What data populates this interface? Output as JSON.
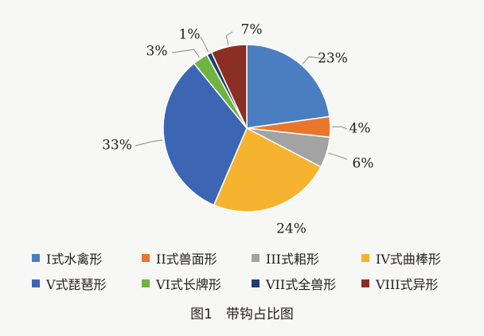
{
  "chart_data": {
    "type": "pie",
    "slices": [
      {
        "label": "I式水禽形",
        "value": 23,
        "pct_label": "23%",
        "color": "#4a7ec0"
      },
      {
        "label": "II式兽面形",
        "value": 4,
        "pct_label": "4%",
        "color": "#e9772b"
      },
      {
        "label": "III式耜形",
        "value": 6,
        "pct_label": "6%",
        "color": "#a3a3a3"
      },
      {
        "label": "IV式曲棒形",
        "value": 24,
        "pct_label": "24%",
        "color": "#f5b330"
      },
      {
        "label": "V式琵琶形",
        "value": 33,
        "pct_label": "33%",
        "color": "#3c66b3"
      },
      {
        "label": "VI式长牌形",
        "value": 3,
        "pct_label": "3%",
        "color": "#6fb440"
      },
      {
        "label": "VII式全兽形",
        "value": 1,
        "pct_label": "1%",
        "color": "#1f3e70"
      },
      {
        "label": "VIII式异形",
        "value": 7,
        "pct_label": "7%",
        "color": "#8b2f24"
      }
    ],
    "legend_position": "bottom"
  },
  "caption": "图1　带钩占比图"
}
